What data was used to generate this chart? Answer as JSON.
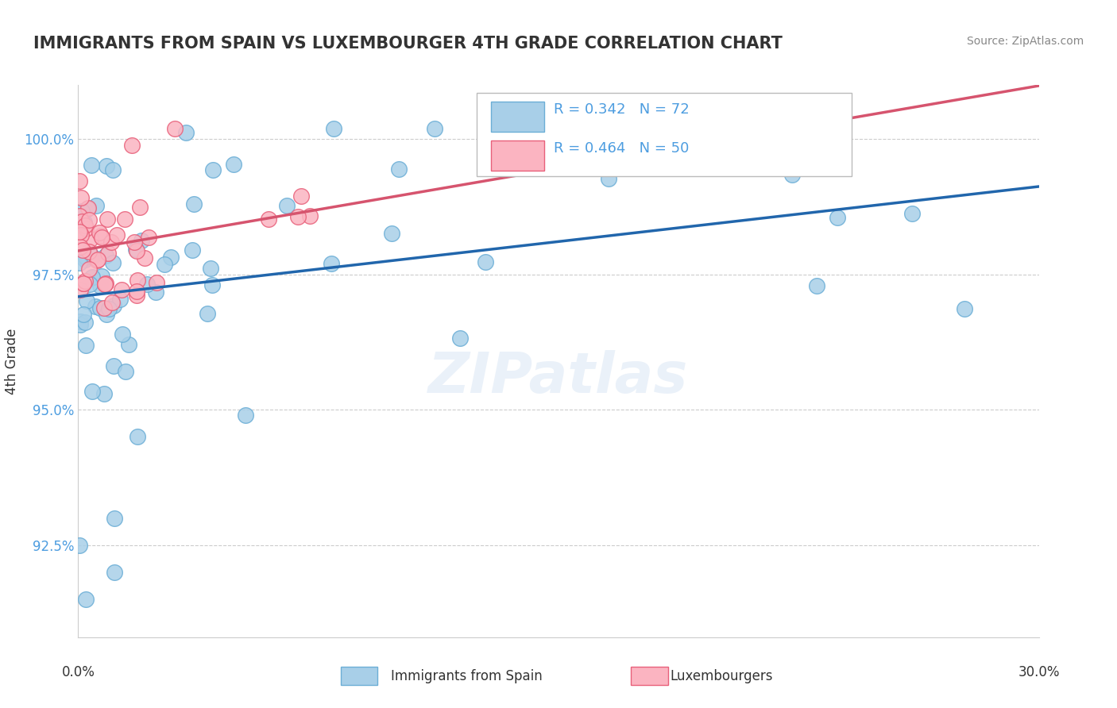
{
  "title": "IMMIGRANTS FROM SPAIN VS LUXEMBOURGER 4TH GRADE CORRELATION CHART",
  "source": "Source: ZipAtlas.com",
  "ylabel": "4th Grade",
  "legend1_label": "R = 0.342   N = 72",
  "legend2_label": "R = 0.464   N = 50",
  "legend_text_color": "#4d9de0",
  "trendline1_color": "#2166ac",
  "trendline2_color": "#d6546e",
  "watermark": "ZIPatlas",
  "ytick_vals": [
    92.5,
    95.0,
    97.5,
    100.0
  ],
  "xlim": [
    0.0,
    30.0
  ],
  "ylim": [
    90.8,
    101.0
  ],
  "series1": {
    "name": "Immigrants from Spain",
    "color": "#a8cfe8",
    "edge_color": "#6baed6"
  },
  "series2": {
    "name": "Luxembourgers",
    "color": "#fbb4c1",
    "edge_color": "#e8607a"
  }
}
